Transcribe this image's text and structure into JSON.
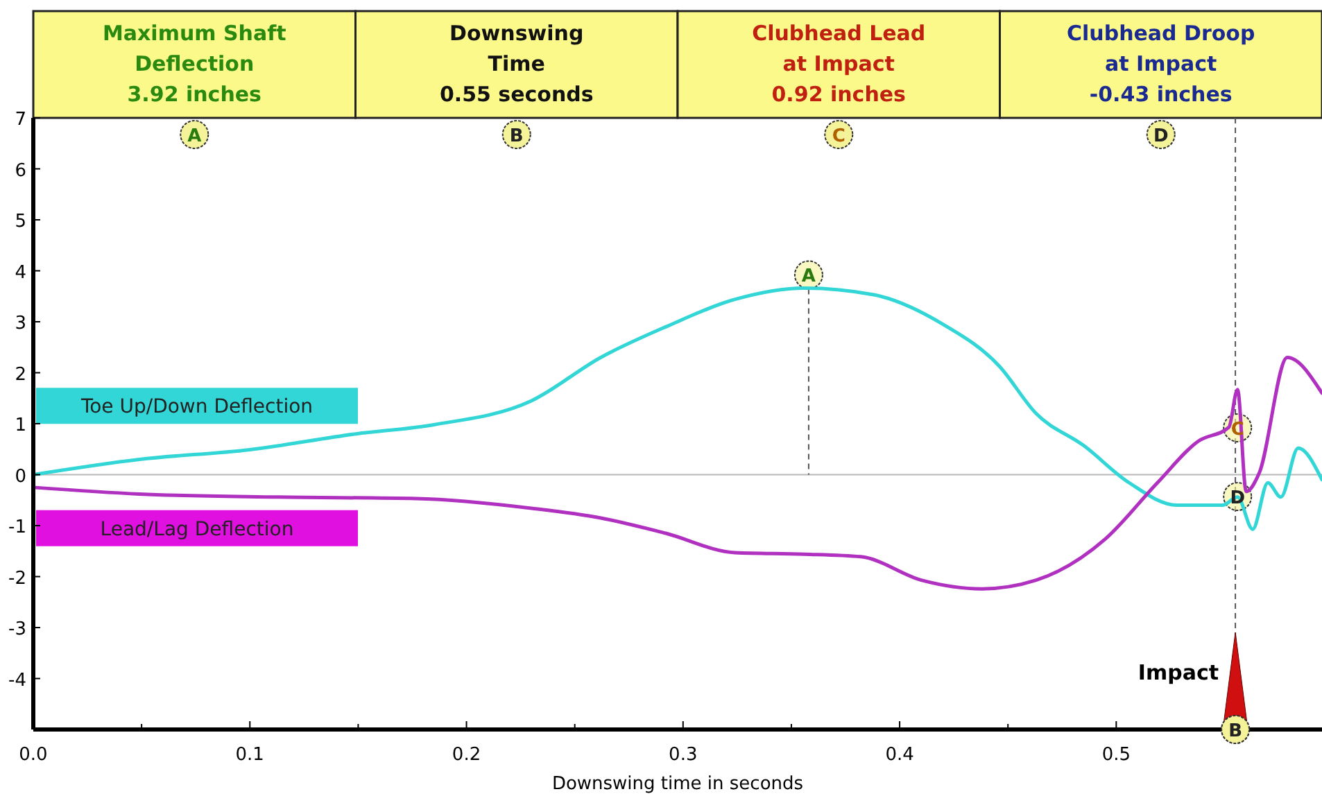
{
  "chart_data": {
    "type": "line",
    "xlabel": "Downswing time in seconds",
    "xlim": [
      0,
      0.595
    ],
    "ylim": [
      -5,
      7
    ],
    "xticks": [
      {
        "value": 0,
        "label": "0.0"
      },
      {
        "value": 0.05,
        "label": null
      },
      {
        "value": 0.1,
        "label": "0.1"
      },
      {
        "value": 0.15,
        "label": null
      },
      {
        "value": 0.2,
        "label": "0.2"
      },
      {
        "value": 0.25,
        "label": null
      },
      {
        "value": 0.3,
        "label": "0.3"
      },
      {
        "value": 0.35,
        "label": null
      },
      {
        "value": 0.4,
        "label": "0.4"
      },
      {
        "value": 0.45,
        "label": null
      },
      {
        "value": 0.5,
        "label": "0.5"
      },
      {
        "value": 0.55,
        "label": null
      }
    ],
    "yticks": [
      {
        "value": -5,
        "label": null
      },
      -4,
      -3,
      -2,
      -1,
      0,
      1,
      2,
      3,
      4,
      5,
      6,
      7
    ],
    "grid": false,
    "legend": "left",
    "marker": "none",
    "line_style": "solid",
    "series": [
      {
        "name": "Toe Up/Down Deflection",
        "color": "#33d6d6",
        "x": [
          0,
          0.049,
          0.1,
          0.149,
          0.185,
          0.23,
          0.262,
          0.292,
          0.324,
          0.356,
          0.388,
          0.42,
          0.446,
          0.463,
          0.485,
          0.506,
          0.528,
          0.549,
          0.556,
          0.563,
          0.57,
          0.576,
          0.584,
          0.595
        ],
        "values": [
          0,
          0.3,
          0.49,
          0.8,
          0.98,
          1.45,
          2.3,
          2.9,
          3.44,
          3.66,
          3.53,
          2.95,
          2.13,
          1.2,
          0.57,
          -0.16,
          -0.6,
          -0.6,
          -0.44,
          -1.07,
          -0.16,
          -0.44,
          0.52,
          -0.1
        ]
      },
      {
        "name": "Lead/Lag Deflection",
        "color": "#b030c0",
        "x": [
          0,
          0.049,
          0.113,
          0.177,
          0.23,
          0.262,
          0.292,
          0.324,
          0.356,
          0.382,
          0.41,
          0.438,
          0.463,
          0.495,
          0.519,
          0.538,
          0.552,
          0.556,
          0.56,
          0.566,
          0.579,
          0.595
        ],
        "values": [
          -0.25,
          -0.38,
          -0.44,
          -0.47,
          -0.66,
          -0.85,
          -1.15,
          -1.53,
          -1.56,
          -1.61,
          -2.07,
          -2.24,
          -2.07,
          -1.26,
          -0.16,
          0.66,
          0.93,
          1.67,
          -0.33,
          0.03,
          2.3,
          1.6
        ]
      }
    ],
    "ref_lines": [
      {
        "axis": "y",
        "value": 0,
        "color": "#b8b8b8",
        "line_style": "solid"
      },
      {
        "axis": "x",
        "value": 0.555,
        "label": "Impact",
        "color": "#555555",
        "line_style": "dashed"
      }
    ],
    "annotations": [
      "Maximum Shaft\nDeflection\n3.92 inches",
      "Downswing\nTime\n0.55 seconds",
      "Clubhead Lead\nat Impact\n0.92 inches",
      "Clubhead Droop\nat Impact\n-0.43 inches",
      {
        "text": "A",
        "x": 0.358,
        "y": 3.92
      },
      {
        "text": "B",
        "x": 0.555,
        "y": -5
      },
      {
        "text": "C",
        "x": 0.556,
        "y": 0.92
      },
      {
        "text": "D",
        "x": 0.556,
        "y": -0.43
      }
    ]
  }
}
